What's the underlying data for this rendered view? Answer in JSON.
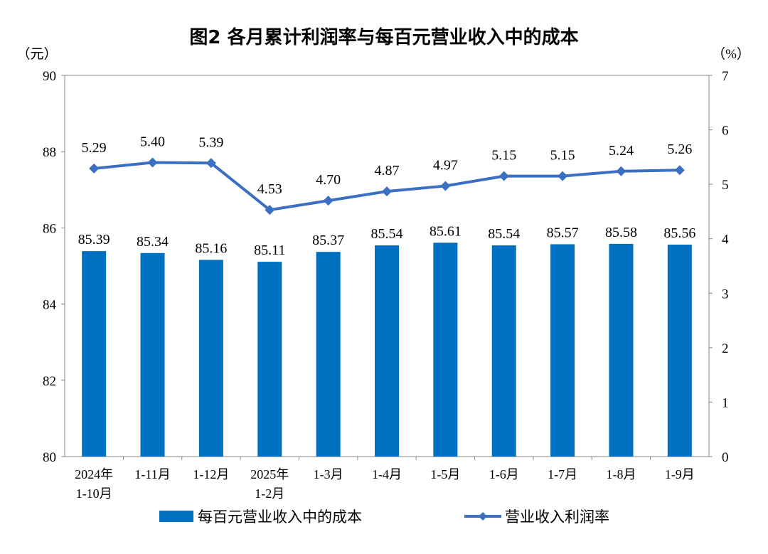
{
  "chart_data": {
    "type": "bar",
    "title": "图2  各月累计利润率与每百元营业收入中的成本",
    "left_unit": "（元）",
    "right_unit": "（%）",
    "categories": [
      [
        "2024年",
        "1-10月"
      ],
      [
        "1-11月"
      ],
      [
        "1-12月"
      ],
      [
        "2025年",
        "1-2月"
      ],
      [
        "1-3月"
      ],
      [
        "1-4月"
      ],
      [
        "1-5月"
      ],
      [
        "1-6月"
      ],
      [
        "1-7月"
      ],
      [
        "1-8月"
      ],
      [
        "1-9月"
      ]
    ],
    "left_axis": {
      "range": [
        80,
        90
      ],
      "ticks": [
        80,
        82,
        84,
        86,
        88,
        90
      ]
    },
    "right_axis": {
      "range": [
        0,
        7
      ],
      "ticks": [
        0,
        1,
        2,
        3,
        4,
        5,
        6,
        7
      ]
    },
    "series": [
      {
        "name": "每百元营业收入中的成本",
        "type": "bar",
        "axis": "left",
        "color": "#0070C0",
        "values": [
          85.39,
          85.34,
          85.16,
          85.11,
          85.37,
          85.54,
          85.61,
          85.54,
          85.57,
          85.58,
          85.56
        ]
      },
      {
        "name": "营业收入利润率",
        "type": "line",
        "axis": "right",
        "color": "#3A6FC2",
        "marker": "diamond",
        "values": [
          5.29,
          5.4,
          5.39,
          4.53,
          4.7,
          4.87,
          4.97,
          5.15,
          5.15,
          5.24,
          5.26
        ]
      }
    ],
    "legend_position": "bottom",
    "grid": false
  }
}
